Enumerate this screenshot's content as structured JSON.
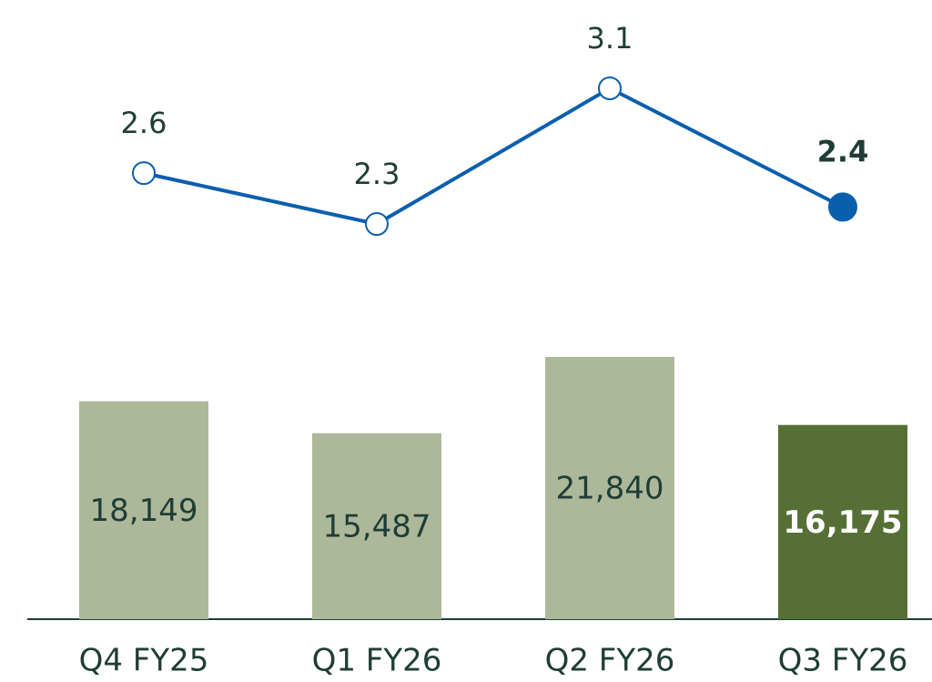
{
  "chart_data": {
    "type": "combo",
    "categories": [
      "Q4 FY25",
      "Q1 FY26",
      "Q2 FY26",
      "Q3 FY26"
    ],
    "series": [
      {
        "type": "bar",
        "values": [
          18149,
          15487,
          21840,
          16175
        ],
        "value_labels": [
          "18,149",
          "15,487",
          "21,840",
          "16,175"
        ],
        "colors": [
          "#adb89a",
          "#adb89a",
          "#adb89a",
          "#566f35"
        ],
        "label_colors": [
          "#1f3d36",
          "#1f3d36",
          "#1f3d36",
          "#ffffff"
        ],
        "emphasis": [
          false,
          false,
          false,
          true
        ]
      },
      {
        "type": "line",
        "values": [
          2.6,
          2.3,
          3.1,
          2.4
        ],
        "color": "#0a5fad",
        "marker_fills": [
          "#ffffff",
          "#ffffff",
          "#ffffff",
          "#0a5fad"
        ],
        "emphasis": [
          false,
          false,
          false,
          true
        ]
      }
    ]
  }
}
